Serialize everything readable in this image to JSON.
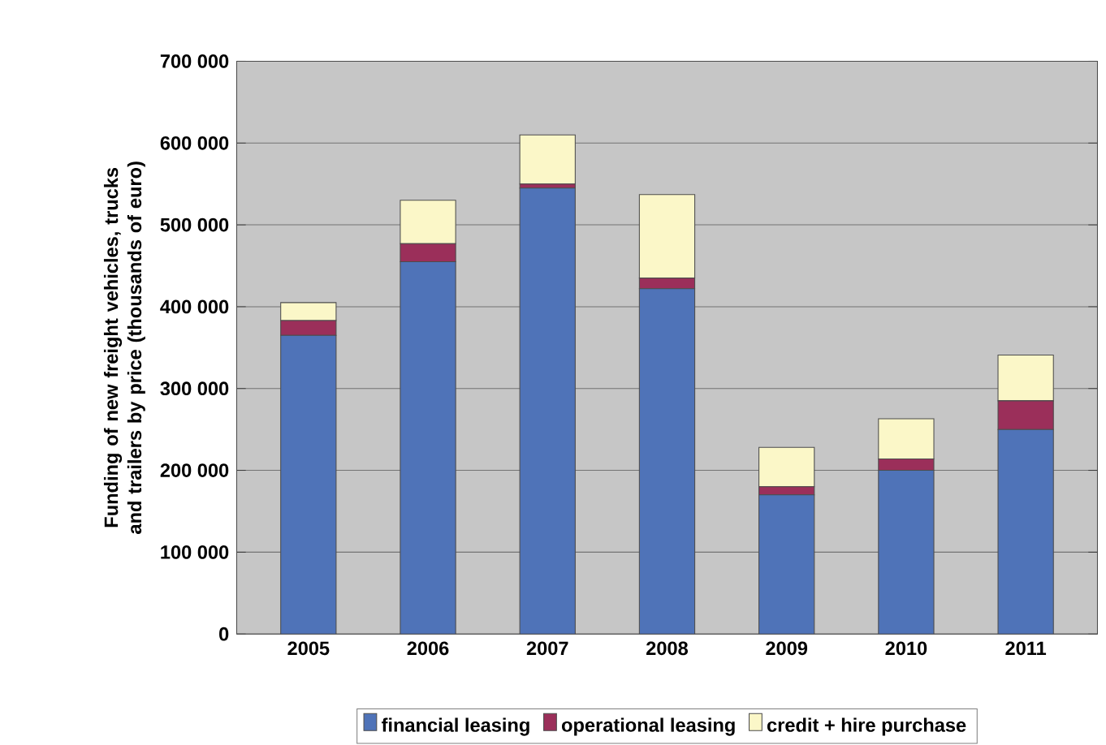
{
  "chart_data": {
    "type": "bar",
    "stacked": true,
    "ylabel": "Funding of new freight vehicles, trucks and trailers by price (thousands of euro)",
    "categories": [
      "2005",
      "2006",
      "2007",
      "2008",
      "2009",
      "2010",
      "2011"
    ],
    "series": [
      {
        "name": "financial leasing",
        "color": "#4f73b8",
        "values": [
          365000,
          455000,
          545000,
          422000,
          170000,
          200000,
          250000
        ]
      },
      {
        "name": "operational leasing",
        "color": "#9b2f5a",
        "values": [
          18000,
          22000,
          5000,
          13000,
          10000,
          14000,
          35000
        ]
      },
      {
        "name": "credit + hire purchase",
        "color": "#fbf7c8",
        "values": [
          22000,
          53000,
          60000,
          102000,
          48000,
          49000,
          56000
        ]
      }
    ],
    "ylim": [
      0,
      700000
    ],
    "yticks": [
      {
        "value": 0,
        "label": "0"
      },
      {
        "value": 100000,
        "label": "100 000"
      },
      {
        "value": 200000,
        "label": "200 000"
      },
      {
        "value": 300000,
        "label": "300 000"
      },
      {
        "value": 400000,
        "label": "400 000"
      },
      {
        "value": 500000,
        "label": "500 000"
      },
      {
        "value": 600000,
        "label": "600 000"
      },
      {
        "value": 700000,
        "label": "700 000"
      }
    ],
    "grid": "y",
    "legend": "bottom"
  }
}
